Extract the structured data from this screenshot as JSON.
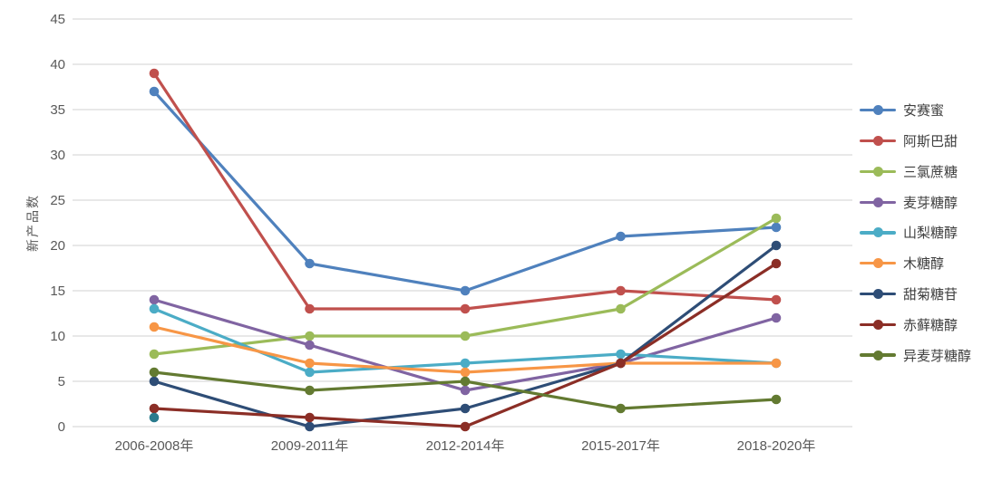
{
  "chart_data": {
    "type": "line",
    "title": "",
    "xlabel": "",
    "ylabel": "新产品数",
    "ylim": [
      0,
      45
    ],
    "ytick_step": 5,
    "grid": true,
    "legend_position": "right",
    "axis_text_color": "#595959",
    "grid_color": "#d9d9d9",
    "legend_text_color": "#3f3f3f",
    "categories": [
      "2006-2008年",
      "2009-2011年",
      "2012-2014年",
      "2015-2017年",
      "2018-2020年"
    ],
    "series": [
      {
        "name": "安赛蜜",
        "color": "#4f81bd",
        "values": [
          37,
          18,
          15,
          21,
          22
        ]
      },
      {
        "name": "阿斯巴甜",
        "color": "#c0504d",
        "values": [
          39,
          13,
          13,
          15,
          14
        ]
      },
      {
        "name": "三氯蔗糖",
        "color": "#9bbb59",
        "values": [
          8,
          10,
          10,
          13,
          23
        ]
      },
      {
        "name": "麦芽糖醇",
        "color": "#8064a2",
        "values": [
          14,
          9,
          4,
          7,
          12
        ]
      },
      {
        "name": "山梨糖醇",
        "color": "#4bacc6",
        "values": [
          13,
          6,
          7,
          8,
          7
        ]
      },
      {
        "name": "木糖醇",
        "color": "#f79646",
        "values": [
          11,
          7,
          6,
          7,
          7
        ]
      },
      {
        "name": "甜菊糖苷",
        "color": "#2e4d76",
        "values": [
          5,
          0,
          2,
          7,
          20
        ]
      },
      {
        "name": "赤藓糖醇",
        "color": "#8b2e26",
        "values": [
          2,
          1,
          0,
          7,
          18
        ]
      },
      {
        "name": "异麦芽糖醇",
        "color": "#637a31",
        "values": [
          6,
          4,
          5,
          2,
          3
        ]
      }
    ],
    "extra_points": [
      {
        "category_index": 0,
        "value": 1,
        "color": "#2a7b8d"
      }
    ]
  }
}
